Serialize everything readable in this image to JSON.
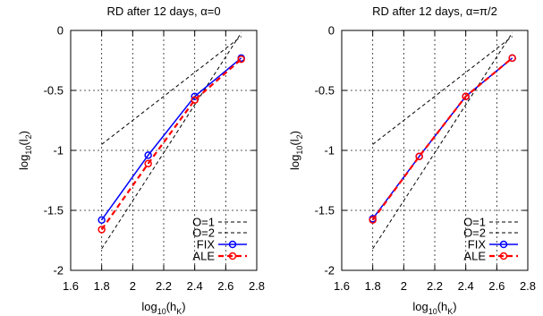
{
  "chart_data": [
    {
      "type": "line",
      "title": "RD after 12 days, α=0",
      "xlabel_main": "log",
      "xlabel_sub1": "10",
      "xlabel_mid": "(h",
      "xlabel_sub2": "K",
      "xlabel_end": ")",
      "ylabel_main": "log",
      "ylabel_sub1": "10",
      "ylabel_mid": "(l",
      "ylabel_sub2": "2",
      "ylabel_end": ")",
      "xlim": [
        1.6,
        2.8
      ],
      "ylim": [
        -2,
        0
      ],
      "xticks": [
        1.6,
        1.8,
        2,
        2.2,
        2.4,
        2.6,
        2.8
      ],
      "xtick_labels": [
        "1.6",
        "1.8",
        "2",
        "2.2",
        "2.4",
        "2.6",
        "2.8"
      ],
      "yticks": [
        0,
        -0.5,
        -1,
        -1.5,
        -2
      ],
      "ytick_labels": [
        "0",
        "-0.5",
        "-1",
        "-1.5",
        "-2"
      ],
      "grid": true,
      "legend_position": "bottom-right",
      "series": [
        {
          "name": "O=1",
          "style": "ref",
          "color": "#000000",
          "x": [
            1.8,
            2.7
          ],
          "y": [
            -0.95,
            -0.05
          ]
        },
        {
          "name": "O=2",
          "style": "ref",
          "color": "#000000",
          "x": [
            1.8,
            2.7
          ],
          "y": [
            -1.82,
            -0.02
          ]
        },
        {
          "name": "FIX",
          "style": "solid",
          "color": "#0000ff",
          "x": [
            1.8,
            2.1,
            2.4,
            2.7
          ],
          "y": [
            -1.58,
            -1.04,
            -0.55,
            -0.23
          ]
        },
        {
          "name": "ALE",
          "style": "dashed",
          "color": "#ff0000",
          "x": [
            1.8,
            2.1,
            2.4,
            2.7
          ],
          "y": [
            -1.66,
            -1.11,
            -0.58,
            -0.24
          ]
        }
      ]
    },
    {
      "type": "line",
      "title": "RD after 12 days, α=π/2",
      "xlabel_main": "log",
      "xlabel_sub1": "10",
      "xlabel_mid": "(h",
      "xlabel_sub2": "K",
      "xlabel_end": ")",
      "ylabel_main": "log",
      "ylabel_sub1": "10",
      "ylabel_mid": "(l",
      "ylabel_sub2": "2",
      "ylabel_end": ")",
      "xlim": [
        1.6,
        2.8
      ],
      "ylim": [
        -2,
        0
      ],
      "xticks": [
        1.6,
        1.8,
        2,
        2.2,
        2.4,
        2.6,
        2.8
      ],
      "xtick_labels": [
        "1.6",
        "1.8",
        "2",
        "2.2",
        "2.4",
        "2.6",
        "2.8"
      ],
      "yticks": [
        0,
        -0.5,
        -1,
        -1.5,
        -2
      ],
      "ytick_labels": [
        "0",
        "-0.5",
        "-1",
        "-1.5",
        "-2"
      ],
      "grid": true,
      "legend_position": "bottom-right",
      "series": [
        {
          "name": "O=1",
          "style": "ref",
          "color": "#000000",
          "x": [
            1.8,
            2.7
          ],
          "y": [
            -0.95,
            -0.05
          ]
        },
        {
          "name": "O=2",
          "style": "ref",
          "color": "#000000",
          "x": [
            1.8,
            2.7
          ],
          "y": [
            -1.82,
            -0.02
          ]
        },
        {
          "name": "FIX",
          "style": "solid",
          "color": "#0000ff",
          "x": [
            1.8,
            2.1,
            2.4,
            2.7
          ],
          "y": [
            -1.57,
            -1.05,
            -0.55,
            -0.23
          ]
        },
        {
          "name": "ALE",
          "style": "dashed",
          "color": "#ff0000",
          "x": [
            1.8,
            2.1,
            2.4,
            2.7
          ],
          "y": [
            -1.58,
            -1.05,
            -0.55,
            -0.23
          ]
        }
      ]
    }
  ]
}
